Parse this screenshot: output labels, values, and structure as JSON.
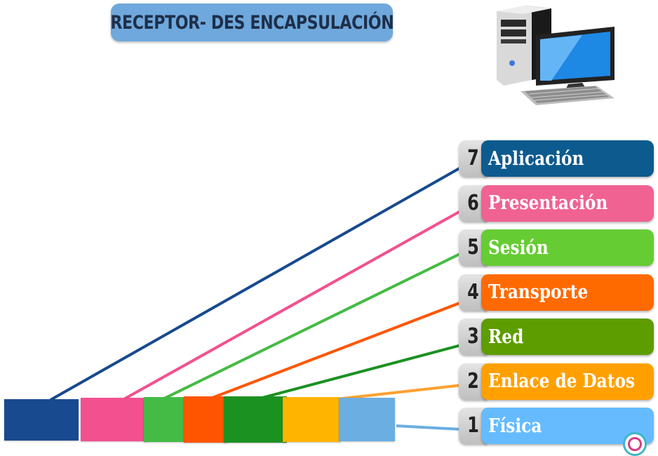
{
  "title": "RECEPTOR- DES ENCAPSULACIÓN",
  "layers": [
    {
      "number": "7",
      "name": "Aplicación",
      "color": "#0d5b8e"
    },
    {
      "number": "6",
      "name": "Presentación",
      "color": "#f06292"
    },
    {
      "number": "5",
      "name": "Sesión",
      "color": "#66cc33"
    },
    {
      "number": "4",
      "name": "Transporte",
      "color": "#ff6a00"
    },
    {
      "number": "3",
      "name": "Red",
      "color": "#5e9d00"
    },
    {
      "number": "2",
      "name": "Enlace de Datos",
      "color": "#ffa000"
    },
    {
      "number": "1",
      "name": "Física",
      "color": "#66bbff"
    }
  ],
  "blocks": [
    {
      "layer": "7",
      "color": "#174a8f"
    },
    {
      "layer": "6",
      "color": "#f2508f"
    },
    {
      "layer": "5",
      "color": "#44bb44"
    },
    {
      "layer": "4",
      "color": "#ff5500"
    },
    {
      "layer": "3",
      "color": "#1b9122"
    },
    {
      "layer": "2",
      "color": "#ffb400"
    },
    {
      "layer": "1",
      "color": "#6aaee2"
    }
  ],
  "icons": {
    "computer": "desktop-computer-icon",
    "logo": "academy-logo-icon"
  }
}
